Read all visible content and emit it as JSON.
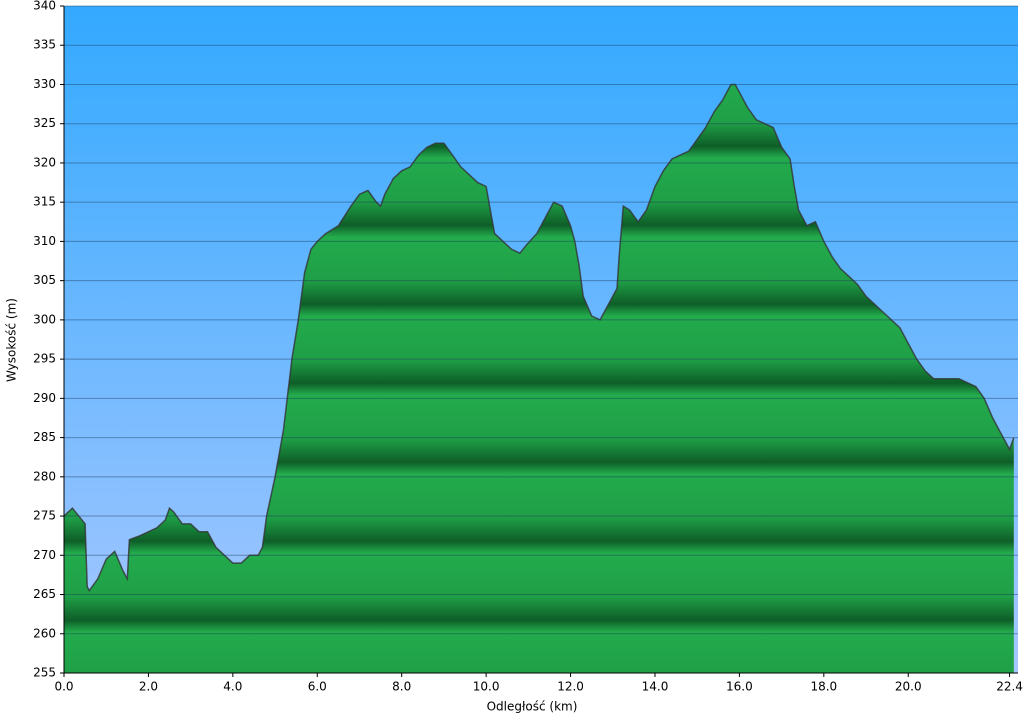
{
  "chart_data": {
    "type": "area",
    "x_label": "Odległość   (km)",
    "y_label": "Wysokość (m)",
    "color": "#22a84b",
    "line_color": "#333333",
    "grid": true,
    "xlim": [
      0,
      22.6
    ],
    "ylim": [
      255,
      340
    ],
    "xticks": [
      {
        "value": 0,
        "label": "0.0"
      },
      {
        "value": 2,
        "label": "2.0"
      },
      {
        "value": 4,
        "label": "4.0"
      },
      {
        "value": 6,
        "label": "6.0"
      },
      {
        "value": 8,
        "label": "8.0"
      },
      {
        "value": 10,
        "label": "10.0"
      },
      {
        "value": 12,
        "label": "12.0"
      },
      {
        "value": 14,
        "label": "14.0"
      },
      {
        "value": 16,
        "label": "16.0"
      },
      {
        "value": 18,
        "label": "18.0"
      },
      {
        "value": 20,
        "label": "20.0"
      },
      {
        "value": 22.4,
        "label": "22.4"
      }
    ],
    "yticks": [
      255,
      260,
      265,
      270,
      275,
      280,
      285,
      290,
      295,
      300,
      305,
      310,
      315,
      320,
      325,
      330,
      335,
      340
    ],
    "x": [
      0,
      0.2,
      0.5,
      0.55,
      0.6,
      0.8,
      1.0,
      1.2,
      1.4,
      1.5,
      1.55,
      1.8,
      2.0,
      2.2,
      2.4,
      2.5,
      2.6,
      2.8,
      3.0,
      3.2,
      3.4,
      3.6,
      3.8,
      4.0,
      4.2,
      4.4,
      4.6,
      4.7,
      4.8,
      5.0,
      5.2,
      5.4,
      5.55,
      5.7,
      5.85,
      6.0,
      6.2,
      6.5,
      6.8,
      7.0,
      7.2,
      7.4,
      7.5,
      7.6,
      7.8,
      8.0,
      8.2,
      8.4,
      8.6,
      8.8,
      9.0,
      9.2,
      9.4,
      9.6,
      9.8,
      10.0,
      10.1,
      10.2,
      10.4,
      10.6,
      10.8,
      10.95,
      11.2,
      11.4,
      11.6,
      11.8,
      12.0,
      12.1,
      12.2,
      12.3,
      12.5,
      12.7,
      12.9,
      13.1,
      13.15,
      13.25,
      13.4,
      13.6,
      13.8,
      14.0,
      14.2,
      14.4,
      14.6,
      14.8,
      15.0,
      15.2,
      15.4,
      15.6,
      15.8,
      15.9,
      16.0,
      16.2,
      16.4,
      16.6,
      16.8,
      17.0,
      17.2,
      17.3,
      17.4,
      17.6,
      17.8,
      18.0,
      18.2,
      18.4,
      18.6,
      18.8,
      19.0,
      19.2,
      19.4,
      19.6,
      19.8,
      20.0,
      20.2,
      20.4,
      20.6,
      20.8,
      21.0,
      21.2,
      21.4,
      21.6,
      21.8,
      22.0,
      22.2,
      22.4,
      22.5
    ],
    "values": [
      275,
      276,
      274,
      266,
      265.5,
      267,
      269.5,
      270.5,
      268,
      267,
      272,
      272.5,
      273,
      273.5,
      274.5,
      276,
      275.5,
      274,
      274,
      273,
      273,
      271,
      270,
      269,
      269,
      270,
      270,
      271,
      275,
      280,
      286,
      295,
      300,
      306,
      309,
      310,
      311,
      312,
      314.5,
      316,
      316.5,
      315,
      314.5,
      316,
      318,
      319,
      319.5,
      321,
      322,
      322.5,
      322.5,
      321,
      319.5,
      318.5,
      317.5,
      317,
      314,
      311,
      310,
      309,
      308.5,
      309.5,
      311,
      313,
      315,
      314.5,
      312,
      310,
      307,
      303,
      300.5,
      300,
      302,
      304,
      308,
      314.5,
      314,
      312.5,
      314,
      317,
      319,
      320.5,
      321,
      321.5,
      323,
      324.5,
      326.5,
      328,
      330,
      330,
      329,
      327,
      325.5,
      325,
      324.5,
      322,
      320.5,
      317,
      314,
      312,
      312.5,
      310,
      308,
      306.5,
      305.5,
      304.5,
      303,
      302,
      301,
      300,
      299,
      297,
      295,
      293.5,
      292.5,
      292.5,
      292.5,
      292.5,
      292,
      291.5,
      290,
      287.5,
      285.5,
      283.5,
      285
    ]
  }
}
